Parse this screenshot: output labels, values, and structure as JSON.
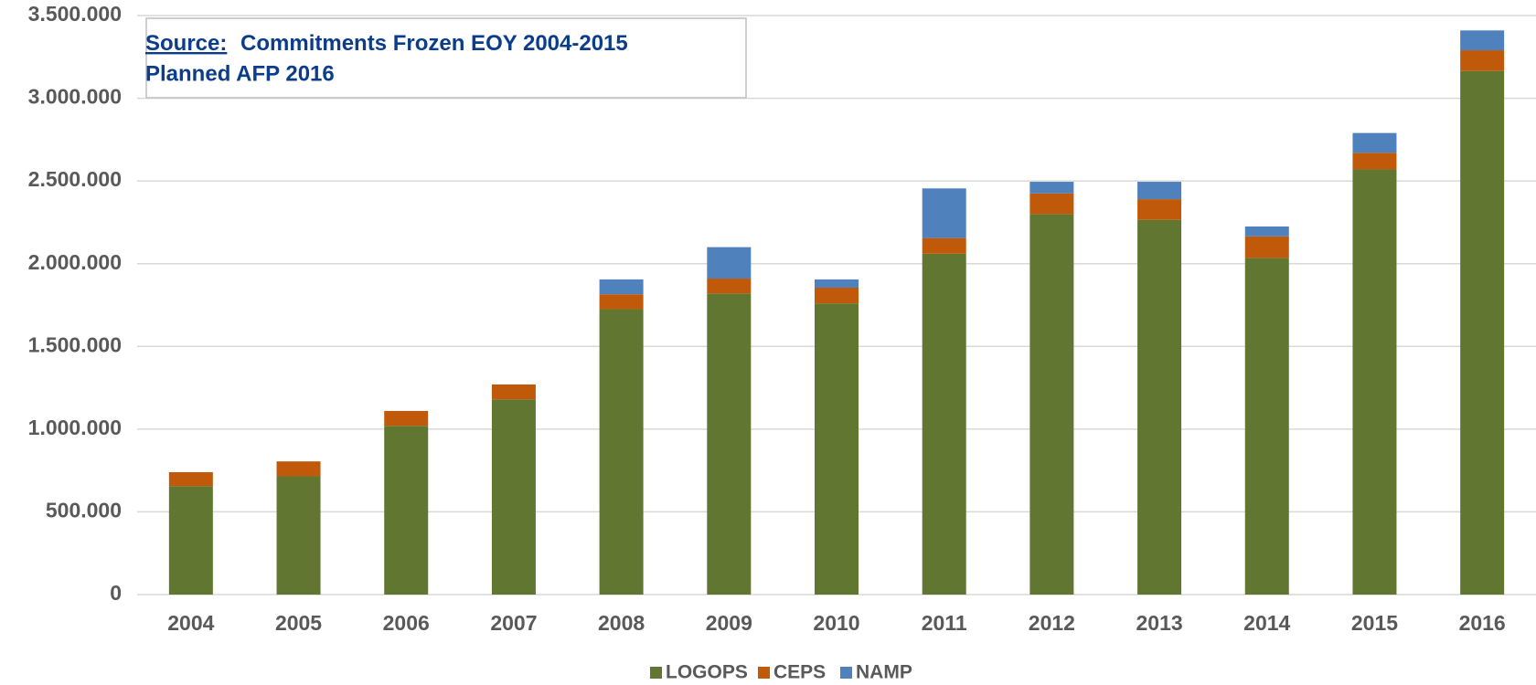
{
  "chart_data": {
    "type": "stacked_bar",
    "annotation": {
      "label": "Source:",
      "lines": [
        "Commitments Frozen EOY 2004-2015",
        "Planned AFP 2016"
      ]
    },
    "categories": [
      "2004",
      "2005",
      "2006",
      "2007",
      "2008",
      "2009",
      "2010",
      "2011",
      "2012",
      "2013",
      "2014",
      "2015",
      "2016"
    ],
    "series": [
      {
        "name": "LOGOPS",
        "color": "#617731",
        "values": [
          655000,
          715000,
          1020000,
          1180000,
          1725000,
          1820000,
          1760000,
          2060000,
          2300000,
          2265000,
          2035000,
          2570000,
          3165000
        ]
      },
      {
        "name": "CEPS",
        "color": "#c05a0a",
        "values": [
          85000,
          90000,
          90000,
          90000,
          90000,
          90000,
          95000,
          95000,
          125000,
          125000,
          130000,
          100000,
          125000
        ]
      },
      {
        "name": "NAMP",
        "color": "#4f81bd",
        "values": [
          0,
          0,
          0,
          0,
          90000,
          190000,
          50000,
          300000,
          70000,
          105000,
          60000,
          120000,
          120000
        ]
      }
    ],
    "ylim": [
      0,
      3500000
    ],
    "yticks": [
      0,
      {
        "value": 500000,
        "label": "500.000"
      },
      {
        "value": 1000000,
        "label": "1.000.000"
      },
      {
        "value": 1500000,
        "label": "1.500.000"
      },
      {
        "value": 2000000,
        "label": "2.000.000"
      },
      {
        "value": 2500000,
        "label": "2.500.000"
      },
      {
        "value": 3000000,
        "label": "3.000.000"
      },
      {
        "value": 3500000,
        "label": "3.500.000"
      }
    ],
    "grid": true,
    "legend": "bottom"
  }
}
